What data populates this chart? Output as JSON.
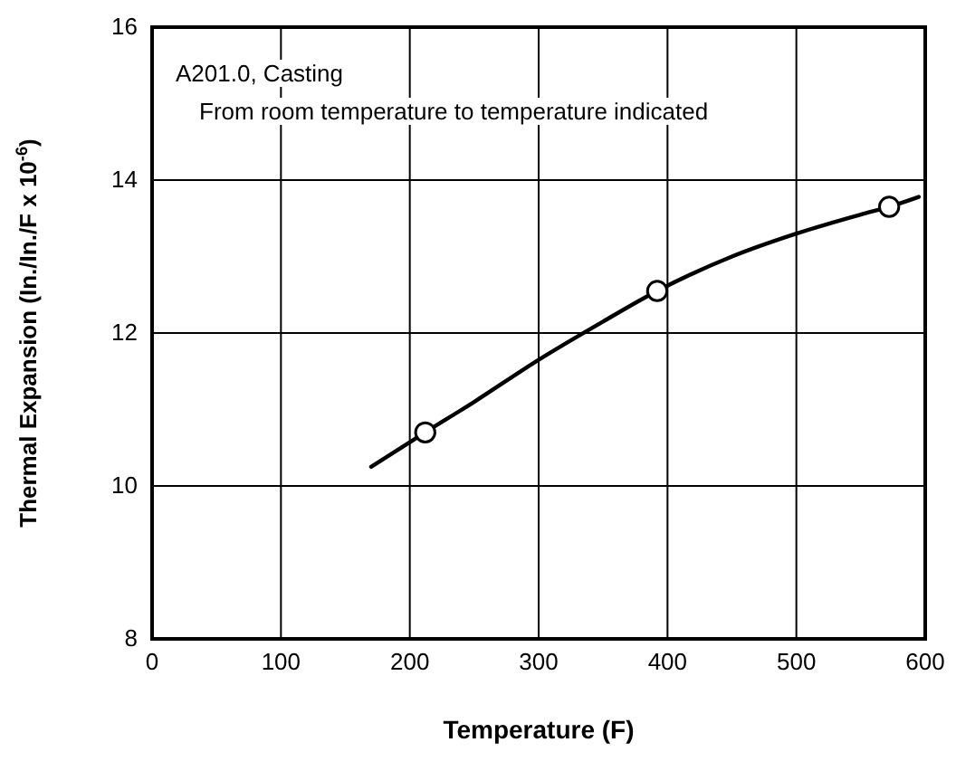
{
  "chart_data": {
    "type": "line",
    "xlabel": "Temperature (F)",
    "ylabel": "Thermal Expansion (In./In./F x 10$^{-6}$)",
    "annotations": [
      "A201.0, Casting",
      "From room temperature to temperature indicated"
    ],
    "xlim": [
      0,
      600
    ],
    "xticks": [
      0,
      100,
      200,
      300,
      400,
      500,
      600
    ],
    "ylim": [
      8,
      16
    ],
    "yticks": [
      8,
      10,
      12,
      14,
      16
    ],
    "grid": true,
    "series": [
      {
        "color": "#000000",
        "marker": "none",
        "x": [
          170,
          210,
          250,
          300,
          350,
          392,
          450,
          500,
          550,
          572,
          595
        ],
        "values": [
          10.25,
          10.68,
          11.1,
          11.65,
          12.15,
          12.55,
          13.0,
          13.3,
          13.55,
          13.65,
          13.78
        ]
      },
      {
        "type": "scatter",
        "color": "#000000",
        "marker": "circle",
        "x": [
          212,
          392,
          572
        ],
        "values": [
          10.7,
          12.55,
          13.65
        ]
      }
    ]
  }
}
